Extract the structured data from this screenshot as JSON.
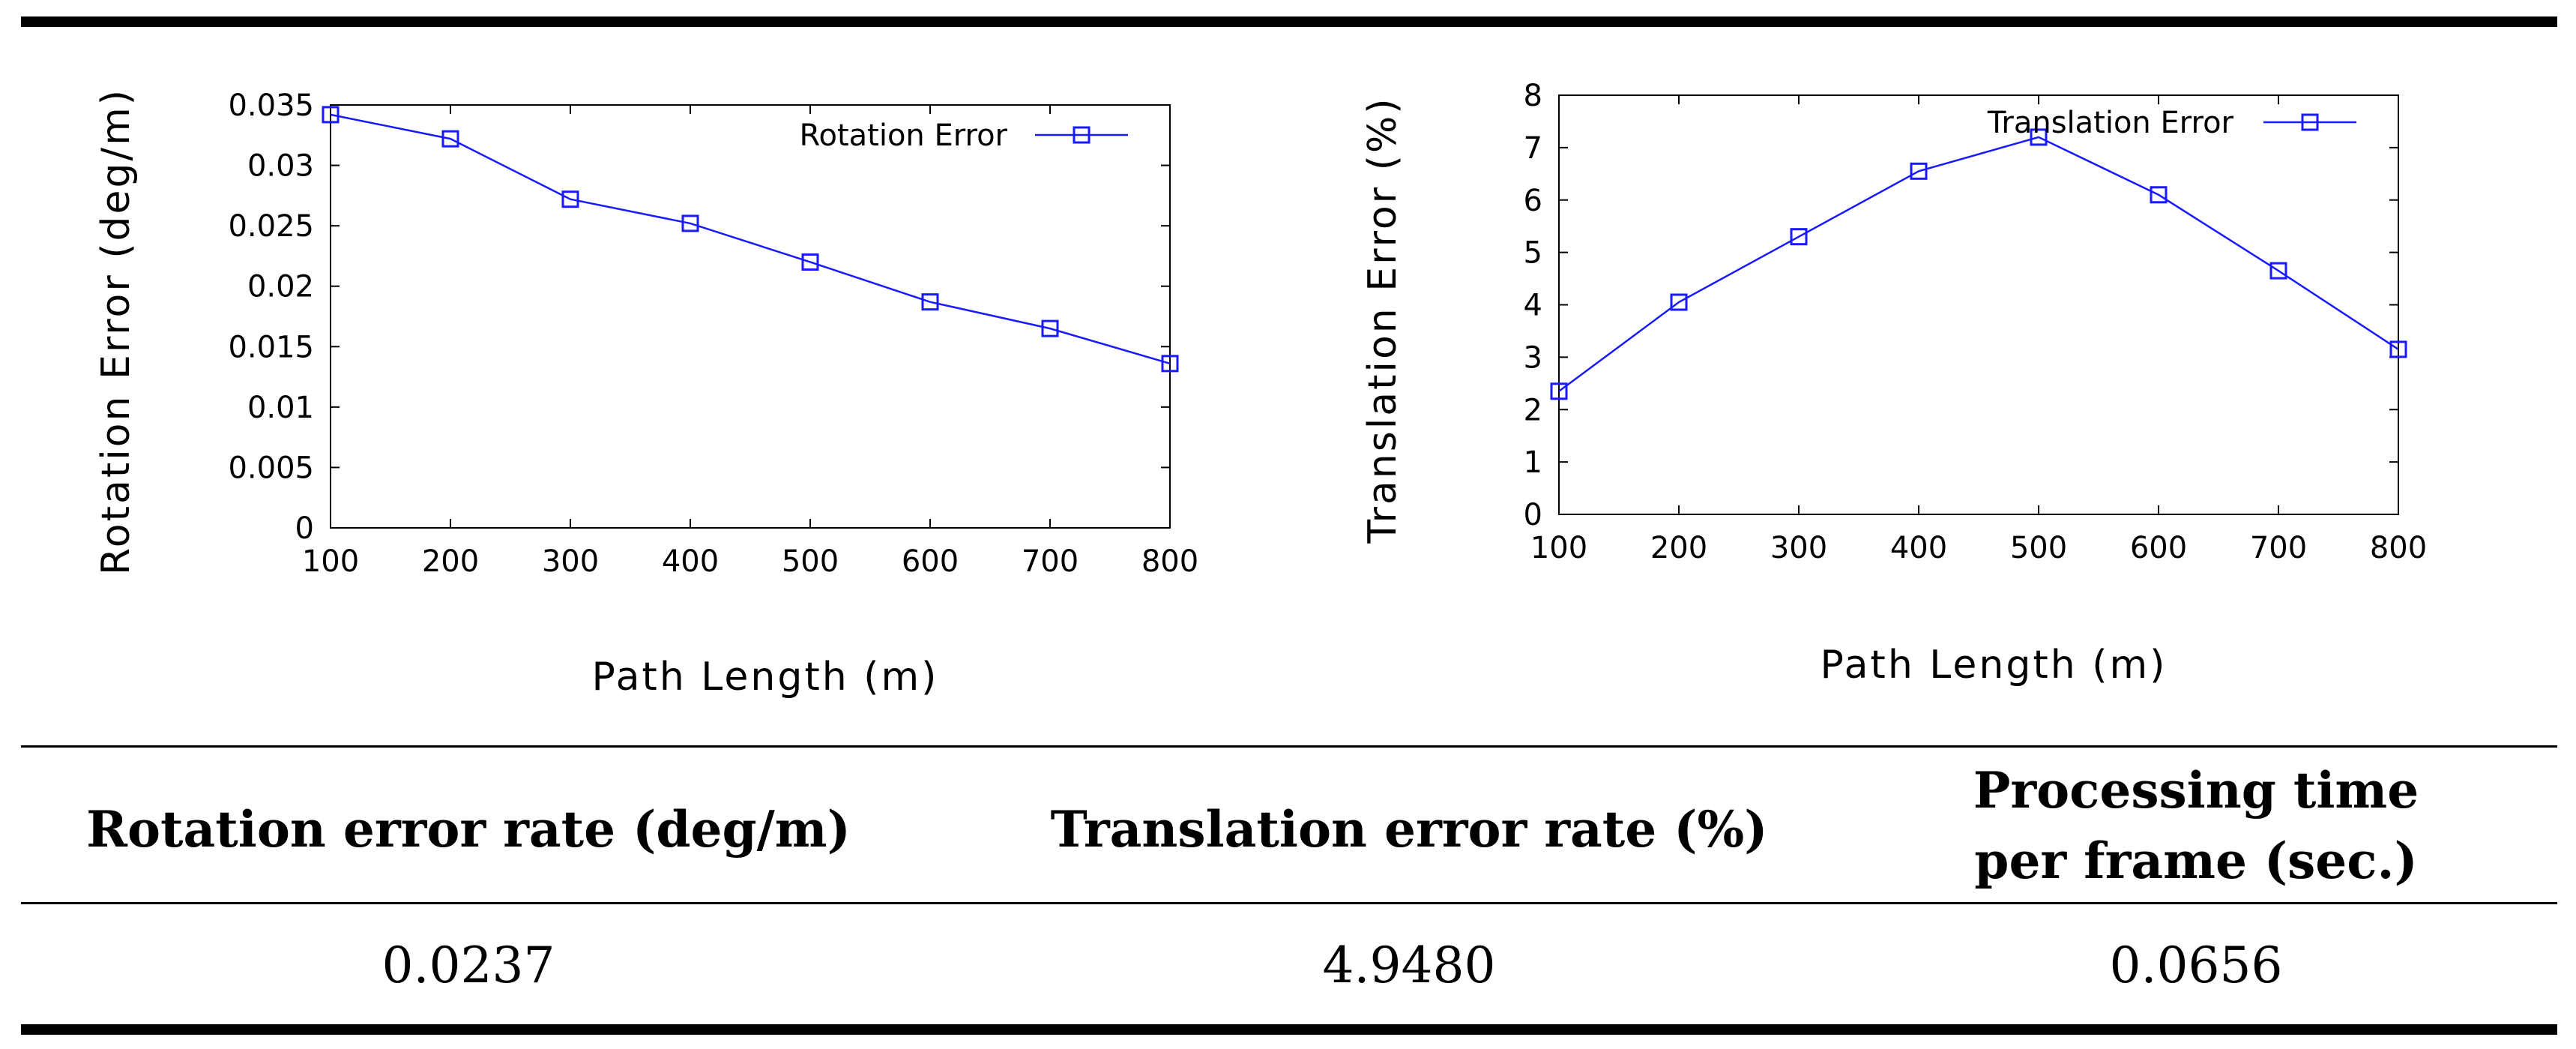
{
  "chart_data": [
    {
      "type": "line",
      "title": "",
      "xlabel": "Path Length (m)",
      "ylabel": "Rotation Error (deg/m)",
      "x": [
        100,
        200,
        300,
        400,
        500,
        600,
        700,
        800
      ],
      "xticks": [
        "100",
        "200",
        "300",
        "400",
        "500",
        "600",
        "700",
        "800"
      ],
      "ylim": [
        0,
        0.035
      ],
      "yticks": [
        "0",
        "0.005",
        "0.01",
        "0.015",
        "0.02",
        "0.025",
        "0.03",
        "0.035"
      ],
      "series": [
        {
          "name": "Rotation Error",
          "color": "#1a1aff",
          "values": [
            0.0342,
            0.0322,
            0.0272,
            0.0252,
            0.022,
            0.0187,
            0.0165,
            0.0136
          ]
        }
      ],
      "legend": "top-right",
      "grid": false
    },
    {
      "type": "line",
      "title": "",
      "xlabel": "Path Length (m)",
      "ylabel": "Translation Error (%)",
      "x": [
        100,
        200,
        300,
        400,
        500,
        600,
        700,
        800
      ],
      "xticks": [
        "100",
        "200",
        "300",
        "400",
        "500",
        "600",
        "700",
        "800"
      ],
      "ylim": [
        0,
        8
      ],
      "yticks": [
        "0",
        "1",
        "2",
        "3",
        "4",
        "5",
        "6",
        "7",
        "8"
      ],
      "series": [
        {
          "name": "Translation Error",
          "color": "#1a1aff",
          "values": [
            2.35,
            4.05,
            5.3,
            6.55,
            7.2,
            6.1,
            4.65,
            3.15
          ]
        }
      ],
      "legend": "top-right",
      "grid": false
    }
  ],
  "table": {
    "headers": [
      "Rotation error rate (deg/m)",
      "Translation error rate (%)",
      "Processing time",
      "per frame (sec.)"
    ],
    "values": [
      "0.0237",
      "4.9480",
      "0.0656"
    ]
  }
}
